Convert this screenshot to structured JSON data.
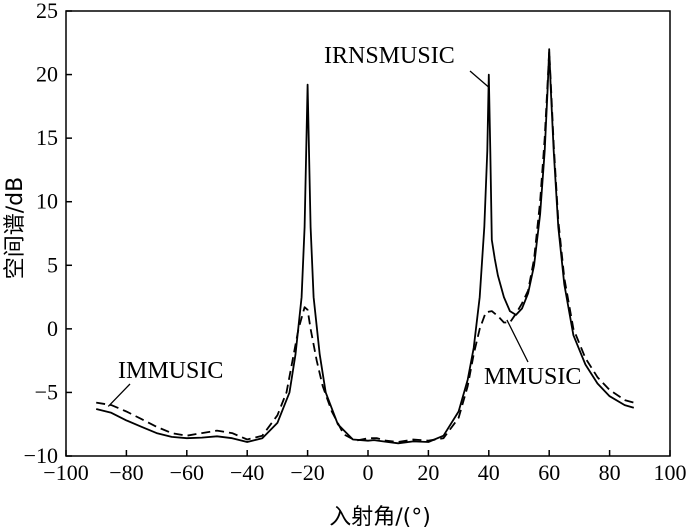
{
  "chart_data": {
    "type": "line",
    "xlabel": "入射角/(°)",
    "ylabel": "空间谱/dB",
    "xlim": [
      -100,
      100
    ],
    "ylim": [
      -10,
      25
    ],
    "xticks": [
      -100,
      -80,
      -60,
      -40,
      -20,
      0,
      20,
      40,
      60,
      80,
      100
    ],
    "xtick_labels": [
      "−100",
      "−80",
      "−60",
      "−40",
      "−20",
      "0",
      "20",
      "40",
      "60",
      "80",
      "100"
    ],
    "yticks": [
      -10,
      -5,
      0,
      5,
      10,
      15,
      20,
      25
    ],
    "ytick_labels": [
      "−10",
      "−5",
      "0",
      "5",
      "10",
      "15",
      "20",
      "25"
    ],
    "grid": false,
    "legend": "none",
    "series": [
      {
        "style": "solid",
        "points": [
          [
            -90,
            -6.3
          ],
          [
            -85,
            -6.6
          ],
          [
            -80,
            -7.2
          ],
          [
            -75,
            -7.7
          ],
          [
            -70,
            -8.2
          ],
          [
            -65,
            -8.5
          ],
          [
            -60,
            -8.6
          ],
          [
            -55,
            -8.55
          ],
          [
            -50,
            -8.45
          ],
          [
            -45,
            -8.6
          ],
          [
            -40,
            -8.9
          ],
          [
            -35,
            -8.6
          ],
          [
            -30,
            -7.4
          ],
          [
            -26,
            -5.0
          ],
          [
            -24,
            -2.0
          ],
          [
            -22,
            2.5
          ],
          [
            -21,
            8.0
          ],
          [
            -20,
            19.2
          ],
          [
            -19,
            8.0
          ],
          [
            -18,
            2.5
          ],
          [
            -16,
            -2.0
          ],
          [
            -14,
            -5.0
          ],
          [
            -10,
            -7.5
          ],
          [
            -5,
            -8.7
          ],
          [
            0,
            -8.8
          ],
          [
            2,
            -8.75
          ],
          [
            5,
            -8.85
          ],
          [
            10,
            -9.0
          ],
          [
            15,
            -8.85
          ],
          [
            20,
            -8.9
          ],
          [
            25,
            -8.4
          ],
          [
            30,
            -6.5
          ],
          [
            33,
            -4.0
          ],
          [
            35,
            -1.5
          ],
          [
            37,
            2.5
          ],
          [
            38.5,
            8.0
          ],
          [
            39.5,
            14.0
          ],
          [
            40,
            20.0
          ],
          [
            40.5,
            14.0
          ],
          [
            41,
            7.0
          ],
          [
            42,
            5.5
          ],
          [
            43,
            4.2
          ],
          [
            45,
            2.5
          ],
          [
            47,
            1.4
          ],
          [
            49,
            1.1
          ],
          [
            51,
            1.6
          ],
          [
            53,
            2.8
          ],
          [
            55,
            5.0
          ],
          [
            57,
            9.0
          ],
          [
            58.5,
            14.0
          ],
          [
            59.5,
            19.0
          ],
          [
            60,
            22.0
          ],
          [
            60.5,
            19.0
          ],
          [
            61.5,
            14.0
          ],
          [
            63,
            8.0
          ],
          [
            65,
            3.5
          ],
          [
            68,
            -0.5
          ],
          [
            72,
            -2.8
          ],
          [
            76,
            -4.3
          ],
          [
            80,
            -5.3
          ],
          [
            85,
            -6.0
          ],
          [
            88,
            -6.2
          ]
        ]
      },
      {
        "style": "dashed",
        "points": [
          [
            -90,
            -5.8
          ],
          [
            -85,
            -6.0
          ],
          [
            -80,
            -6.5
          ],
          [
            -75,
            -7.1
          ],
          [
            -70,
            -7.7
          ],
          [
            -65,
            -8.2
          ],
          [
            -60,
            -8.4
          ],
          [
            -55,
            -8.2
          ],
          [
            -50,
            -8.0
          ],
          [
            -45,
            -8.2
          ],
          [
            -40,
            -8.7
          ],
          [
            -35,
            -8.4
          ],
          [
            -30,
            -6.8
          ],
          [
            -27,
            -5.0
          ],
          [
            -25,
            -2.5
          ],
          [
            -23,
            0.0
          ],
          [
            -21,
            1.7
          ],
          [
            -20,
            1.5
          ],
          [
            -19,
            0.0
          ],
          [
            -17,
            -2.5
          ],
          [
            -15,
            -4.5
          ],
          [
            -12,
            -6.5
          ],
          [
            -8,
            -8.3
          ],
          [
            -4,
            -8.8
          ],
          [
            0,
            -8.6
          ],
          [
            3,
            -8.6
          ],
          [
            6,
            -8.8
          ],
          [
            10,
            -8.9
          ],
          [
            15,
            -8.7
          ],
          [
            20,
            -8.8
          ],
          [
            25,
            -8.6
          ],
          [
            30,
            -7.0
          ],
          [
            33,
            -4.5
          ],
          [
            35,
            -2.0
          ],
          [
            37,
            0.0
          ],
          [
            39,
            1.3
          ],
          [
            41,
            1.4
          ],
          [
            43,
            1.0
          ],
          [
            45,
            0.5
          ],
          [
            47,
            0.5
          ],
          [
            49,
            1.2
          ],
          [
            51,
            2.0
          ],
          [
            53,
            3.0
          ],
          [
            55,
            5.5
          ],
          [
            57,
            10.0
          ],
          [
            58.5,
            15.0
          ],
          [
            59.5,
            19.5
          ],
          [
            60,
            21.8
          ],
          [
            60.5,
            19.5
          ],
          [
            61.5,
            14.5
          ],
          [
            63,
            8.5
          ],
          [
            65,
            4.0
          ],
          [
            68,
            0.0
          ],
          [
            72,
            -2.3
          ],
          [
            76,
            -3.8
          ],
          [
            80,
            -4.8
          ],
          [
            85,
            -5.6
          ],
          [
            88,
            -5.8
          ]
        ]
      }
    ],
    "annotations": [
      {
        "text": "IRNSMUSIC",
        "tip": [
          40,
          19.0
        ]
      },
      {
        "text": "IMMUSIC",
        "tip": [
          -86,
          -6.1
        ]
      },
      {
        "text": "MMUSIC",
        "tip": [
          46,
          0.7
        ]
      }
    ]
  }
}
